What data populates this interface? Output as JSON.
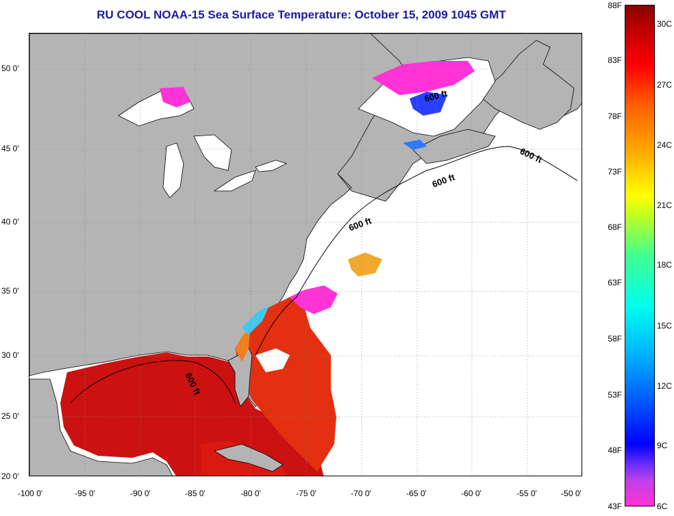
{
  "title": "RU COOL  NOAA-15  Sea Surface Temperature:  October 15, 2009 1045 GMT",
  "map": {
    "lon_range": [
      -100,
      -50
    ],
    "lat_range": [
      20,
      52.5
    ],
    "isobath_label": "600 ft",
    "x_ticks": [
      "-100 0'",
      "-95 0'",
      "-90 0'",
      "-85 0'",
      "-80 0'",
      "-75 0'",
      "-70 0'",
      "-65 0'",
      "-60 0'",
      "-55 0'",
      "-50 0'"
    ],
    "y_ticks": [
      "20 0'",
      "25 0'",
      "30 0'",
      "35 0'",
      "40 0'",
      "45 0'",
      "50 0'"
    ],
    "colors": {
      "land": "#b4b4b4",
      "no_data": "#ffffff",
      "warm": "#d01010",
      "cold": "#ff33d6"
    }
  },
  "colorbar": {
    "fahrenheit_labels": [
      "88F",
      "83F",
      "78F",
      "73F",
      "68F",
      "63F",
      "58F",
      "53F",
      "48F",
      "43F"
    ],
    "celsius_labels": [
      "30C",
      "27C",
      "24C",
      "21C",
      "18C",
      "15C",
      "12C",
      "9C",
      "6C"
    ],
    "range_f": [
      43,
      88
    ],
    "range_c": [
      6,
      31
    ]
  }
}
